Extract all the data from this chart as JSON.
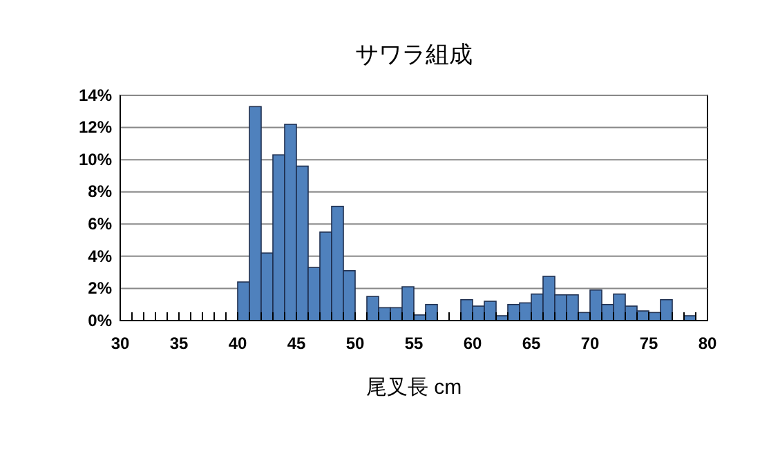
{
  "chart_data": {
    "type": "histogram",
    "title": "サワラ組成",
    "xlabel": "尾叉長 cm",
    "bins": [
      30,
      31,
      32,
      33,
      34,
      35,
      36,
      37,
      38,
      39,
      40,
      41,
      42,
      43,
      44,
      45,
      46,
      47,
      48,
      49,
      50,
      51,
      52,
      53,
      54,
      55,
      56,
      57,
      58,
      59,
      60,
      61,
      62,
      63,
      64,
      65,
      66,
      67,
      68,
      69,
      70,
      71,
      72,
      73,
      74,
      75,
      76,
      77,
      78,
      79,
      80
    ],
    "values": [
      0,
      0,
      0,
      0,
      0,
      0,
      0,
      0,
      0,
      0,
      2.4,
      13.3,
      4.2,
      10.3,
      12.2,
      9.6,
      3.3,
      5.5,
      7.1,
      3.1,
      0,
      1.5,
      0.8,
      0.8,
      2.1,
      0.35,
      1.0,
      0,
      0,
      1.3,
      0.9,
      1.2,
      0.3,
      1.0,
      1.1,
      1.65,
      2.75,
      1.6,
      1.6,
      0.5,
      1.9,
      1.0,
      1.65,
      0.9,
      0.6,
      0.5,
      1.3,
      0,
      0.3,
      0
    ],
    "color": "#4f81bd",
    "xlim": [
      30,
      80
    ],
    "xticks": [
      30,
      35,
      40,
      45,
      50,
      55,
      60,
      65,
      70,
      75,
      80
    ],
    "ylim": [
      0,
      14
    ],
    "yticks": [
      {
        "value": 0,
        "label": "0%"
      },
      {
        "value": 2,
        "label": "2%"
      },
      {
        "value": 4,
        "label": "4%"
      },
      {
        "value": 6,
        "label": "6%"
      },
      {
        "value": 8,
        "label": "8%"
      },
      {
        "value": 10,
        "label": "10%"
      },
      {
        "value": 12,
        "label": "12%"
      },
      {
        "value": 14,
        "label": "14%"
      }
    ],
    "grid": "y"
  }
}
